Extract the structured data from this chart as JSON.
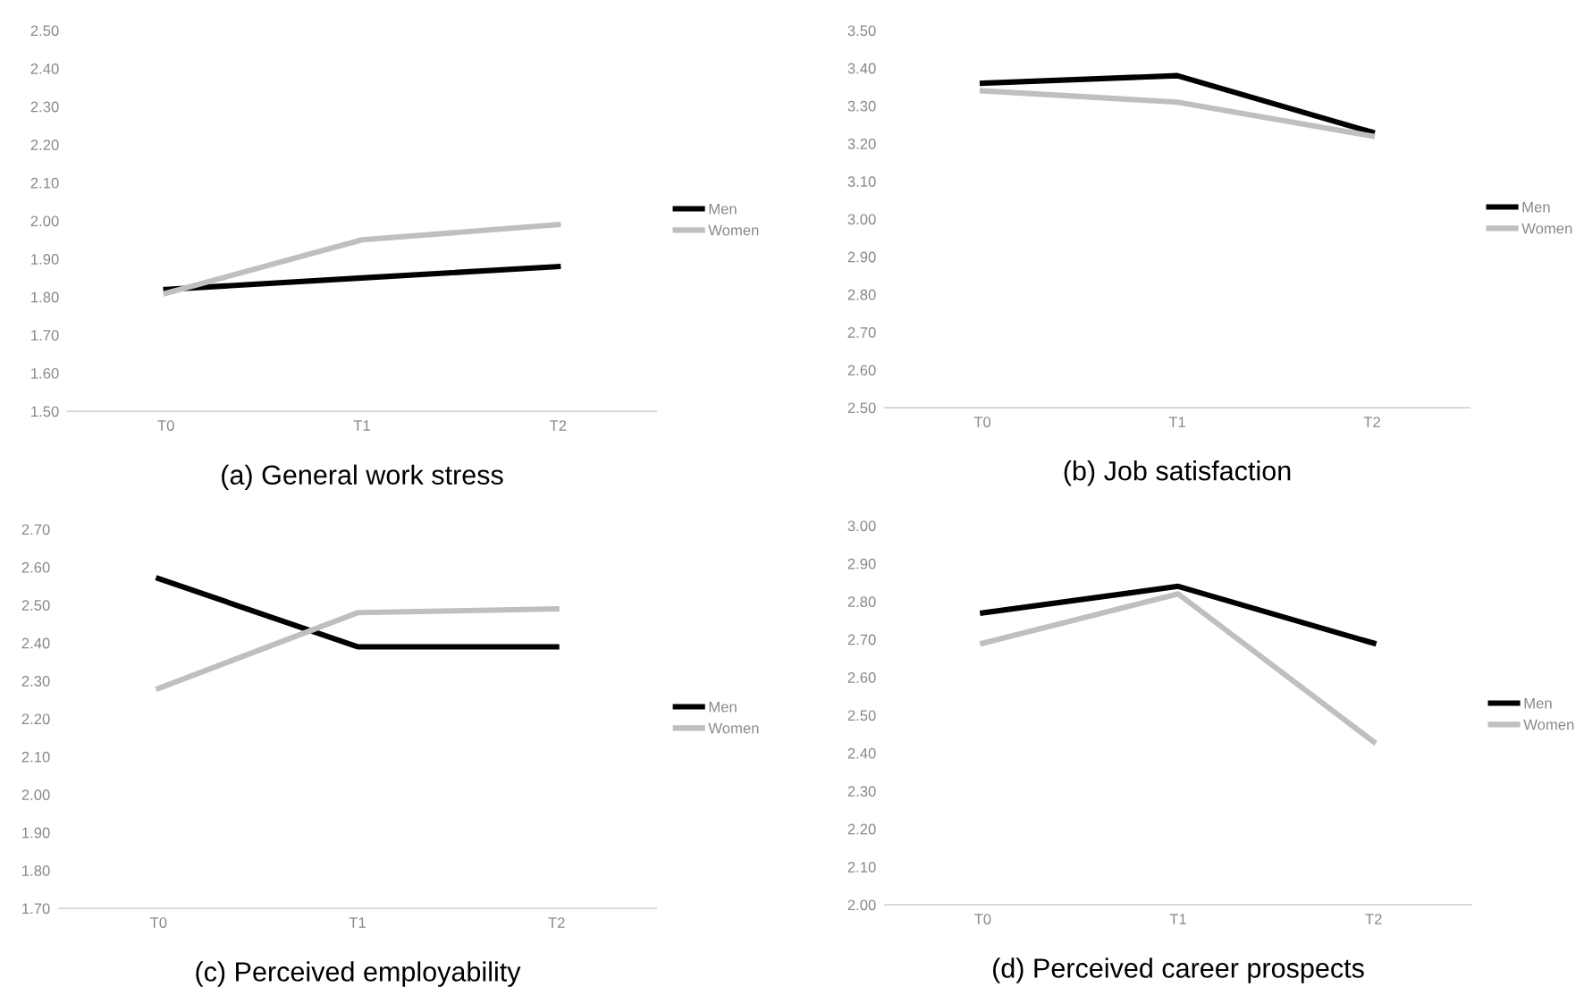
{
  "chart_data": [
    {
      "type": "line",
      "title": "(a) General work stress",
      "categories": [
        "T0",
        "T1",
        "T2"
      ],
      "series": [
        {
          "name": "Men",
          "color": "#000000",
          "values": [
            1.82,
            1.85,
            1.88
          ]
        },
        {
          "name": "Women",
          "color": "#bfbfbf",
          "values": [
            1.81,
            1.95,
            1.99
          ]
        }
      ],
      "ylim": [
        1.5,
        2.5
      ],
      "yticks": [
        {
          "value": 1.5,
          "label": "1.50"
        },
        {
          "value": 1.6,
          "label": "1.60"
        },
        {
          "value": 1.7,
          "label": "1.70"
        },
        {
          "value": 1.8,
          "label": "1.80"
        },
        {
          "value": 1.9,
          "label": "1.90"
        },
        {
          "value": 2.0,
          "label": "2.00"
        },
        {
          "value": 2.1,
          "label": "2.10"
        },
        {
          "value": 2.2,
          "label": "2.20"
        },
        {
          "value": 2.3,
          "label": "2.30"
        },
        {
          "value": 2.4,
          "label": "2.40"
        },
        {
          "value": 2.5,
          "label": "2.50"
        }
      ],
      "legend": "right",
      "grid": false,
      "marker": "none",
      "line_style": "solid"
    },
    {
      "type": "line",
      "title": "(b) Job satisfaction",
      "categories": [
        "T0",
        "T1",
        "T2"
      ],
      "series": [
        {
          "name": "Men",
          "color": "#000000",
          "values": [
            3.36,
            3.38,
            3.23
          ]
        },
        {
          "name": "Women",
          "color": "#bfbfbf",
          "values": [
            3.34,
            3.31,
            3.22
          ]
        }
      ],
      "ylim": [
        2.5,
        3.5
      ],
      "yticks": [
        {
          "value": 2.5,
          "label": "2.50"
        },
        {
          "value": 2.6,
          "label": "2.60"
        },
        {
          "value": 2.7,
          "label": "2.70"
        },
        {
          "value": 2.8,
          "label": "2.80"
        },
        {
          "value": 2.9,
          "label": "2.90"
        },
        {
          "value": 3.0,
          "label": "3.00"
        },
        {
          "value": 3.1,
          "label": "3.10"
        },
        {
          "value": 3.2,
          "label": "3.20"
        },
        {
          "value": 3.3,
          "label": "3.30"
        },
        {
          "value": 3.4,
          "label": "3.40"
        },
        {
          "value": 3.5,
          "label": "3.50"
        }
      ],
      "legend": "right",
      "grid": false,
      "marker": "none",
      "line_style": "solid"
    },
    {
      "type": "line",
      "title": "(c) Perceived employability",
      "categories": [
        "T0",
        "T1",
        "T2"
      ],
      "series": [
        {
          "name": "Men",
          "color": "#000000",
          "values": [
            2.57,
            2.39,
            2.39
          ]
        },
        {
          "name": "Women",
          "color": "#bfbfbf",
          "values": [
            2.28,
            2.48,
            2.49
          ]
        }
      ],
      "ylim": [
        1.7,
        2.7
      ],
      "yticks": [
        {
          "value": 1.7,
          "label": "1.70"
        },
        {
          "value": 1.8,
          "label": "1.80"
        },
        {
          "value": 1.9,
          "label": "1.90"
        },
        {
          "value": 2.0,
          "label": "2.00"
        },
        {
          "value": 2.1,
          "label": "2.10"
        },
        {
          "value": 2.2,
          "label": "2.20"
        },
        {
          "value": 2.3,
          "label": "2.30"
        },
        {
          "value": 2.4,
          "label": "2.40"
        },
        {
          "value": 2.5,
          "label": "2.50"
        },
        {
          "value": 2.6,
          "label": "2.60"
        },
        {
          "value": 2.7,
          "label": "2.70"
        }
      ],
      "legend": "right",
      "grid": false,
      "marker": "none",
      "line_style": "solid"
    },
    {
      "type": "line",
      "title": "(d) Perceived career prospects",
      "categories": [
        "T0",
        "T1",
        "T2"
      ],
      "series": [
        {
          "name": "Men",
          "color": "#000000",
          "values": [
            2.77,
            2.84,
            2.69
          ]
        },
        {
          "name": "Women",
          "color": "#bfbfbf",
          "values": [
            2.69,
            2.82,
            2.43
          ]
        }
      ],
      "ylim": [
        2.0,
        3.0
      ],
      "yticks": [
        {
          "value": 2.0,
          "label": "2.00"
        },
        {
          "value": 2.1,
          "label": "2.10"
        },
        {
          "value": 2.2,
          "label": "2.20"
        },
        {
          "value": 2.3,
          "label": "2.30"
        },
        {
          "value": 2.4,
          "label": "2.40"
        },
        {
          "value": 2.5,
          "label": "2.50"
        },
        {
          "value": 2.6,
          "label": "2.60"
        },
        {
          "value": 2.7,
          "label": "2.70"
        },
        {
          "value": 2.8,
          "label": "2.80"
        },
        {
          "value": 2.9,
          "label": "2.90"
        },
        {
          "value": 3.0,
          "label": "3.00"
        }
      ],
      "legend": "right",
      "grid": false,
      "marker": "none",
      "line_style": "solid"
    }
  ]
}
